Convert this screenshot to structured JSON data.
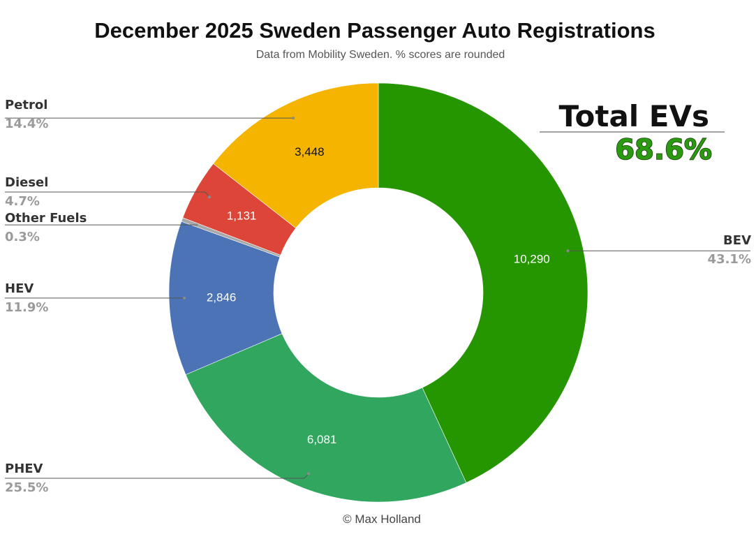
{
  "chart_data": {
    "type": "pie",
    "donut": true,
    "title": "December 2025 Sweden Passenger Auto Registrations",
    "subtitle": "Data from Mobility Sweden. % scores are rounded",
    "series": [
      {
        "name": "BEV",
        "value": 10290,
        "value_label": "10,290",
        "pct": "43.1%",
        "color": "#269600",
        "text_color": "#ffffff"
      },
      {
        "name": "PHEV",
        "value": 6081,
        "value_label": "6,081",
        "pct": "25.5%",
        "color": "#30a65f",
        "text_color": "#ffffff"
      },
      {
        "name": "HEV",
        "value": 2846,
        "value_label": "2,846",
        "pct": "11.9%",
        "color": "#4b73b5",
        "text_color": "#ffffff"
      },
      {
        "name": "Other Fuels",
        "value": 72,
        "value_label": "",
        "pct": "0.3%",
        "color": "#a8a8a8",
        "text_color": "#ffffff"
      },
      {
        "name": "Diesel",
        "value": 1131,
        "value_label": "1,131",
        "pct": "4.7%",
        "color": "#dd4538",
        "text_color": "#ffffff"
      },
      {
        "name": "Petrol",
        "value": 3448,
        "value_label": "3,448",
        "pct": "14.4%",
        "color": "#f4b400",
        "text_color": "#111111"
      }
    ]
  },
  "annotation": {
    "label": "Total EVs",
    "value": "68.6%"
  },
  "credit": "© Max Holland"
}
